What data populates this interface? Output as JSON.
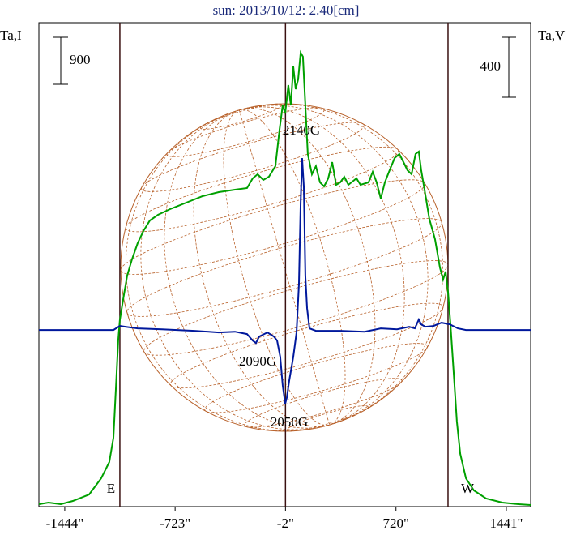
{
  "chart_data": {
    "type": "line",
    "title": "sun: 2013/10/12: 2.40[cm]",
    "ylabel": "Ta,I",
    "y2label": "Ta,V",
    "xlim": [
      -1613,
      1600
    ],
    "ylim": [
      0,
      9265
    ],
    "y2lim": [
      -1178,
      2050
    ],
    "xticks": [
      {
        "value": -1444,
        "label": "-1444\""
      },
      {
        "value": -723,
        "label": "-723\""
      },
      {
        "value": -2,
        "label": "-2\""
      },
      {
        "value": 720,
        "label": "720\""
      },
      {
        "value": 1441,
        "label": "1441\""
      }
    ],
    "vlines": [
      -1084,
      -2,
      1060
    ],
    "scale_bars": [
      900,
      400
    ],
    "annotations": [
      "2140G",
      "2090G",
      "2050G",
      "E",
      "W"
    ],
    "series": [
      {
        "color": "#00a000",
        "x": [
          -1613,
          -1550,
          -1470,
          -1391,
          -1285,
          -1206,
          -1153,
          -1126,
          -1110,
          -1095,
          -1084,
          -1063,
          -1036,
          -1005,
          -968,
          -930,
          -888,
          -835,
          -756,
          -650,
          -544,
          -438,
          -332,
          -253,
          -216,
          -184,
          -147,
          -110,
          -68,
          -41,
          -20,
          -4,
          17,
          33,
          49,
          65,
          81,
          97,
          112,
          128,
          144,
          171,
          197,
          224,
          250,
          277,
          303,
          329,
          356,
          382,
          409,
          462,
          488,
          541,
          568,
          594,
          621,
          647,
          674,
          711,
          742,
          769,
          795,
          822,
          848,
          869,
          885,
          912,
          938,
          975,
          1007,
          1028,
          1044,
          1060,
          1076,
          1097,
          1118,
          1140,
          1177,
          1229,
          1309,
          1415,
          1521,
          1600
        ],
        "values": [
          47,
          78,
          47,
          109,
          233,
          543,
          854,
          1319,
          2250,
          3182,
          3570,
          3958,
          4423,
          4734,
          5044,
          5277,
          5479,
          5587,
          5696,
          5820,
          5944,
          6022,
          6068,
          6099,
          6286,
          6363,
          6255,
          6317,
          6518,
          7217,
          7682,
          7527,
          8070,
          7682,
          8427,
          7993,
          8179,
          8691,
          8614,
          7682,
          6751,
          6363,
          6518,
          6208,
          6130,
          6286,
          6596,
          6161,
          6208,
          6317,
          6161,
          6286,
          6161,
          6208,
          6410,
          6208,
          5898,
          6208,
          6410,
          6674,
          6751,
          6596,
          6441,
          6363,
          6751,
          6798,
          6441,
          5975,
          5510,
          5122,
          4578,
          4346,
          4501,
          4113,
          3492,
          2561,
          1630,
          1009,
          543,
          310,
          155,
          78,
          47,
          31
        ]
      },
      {
        "color": "#00189c",
        "axis": "y2",
        "x": [
          -1613,
          -1126,
          -1084,
          -1047,
          -968,
          -809,
          -597,
          -438,
          -332,
          -253,
          -216,
          -195,
          -173,
          -120,
          -78,
          -57,
          -36,
          -20,
          -4,
          7,
          22,
          49,
          70,
          86,
          97,
          107,
          118,
          128,
          139,
          155,
          197,
          356,
          515,
          621,
          727,
          806,
          843,
          869,
          885,
          912,
          965,
          1018,
          1071,
          1124,
          1177,
          1600
        ],
        "values": [
          0,
          0,
          27,
          22,
          11,
          5,
          -5,
          -16,
          -11,
          -27,
          -70,
          -87,
          -43,
          -16,
          -43,
          -70,
          -179,
          -368,
          -492,
          -449,
          -341,
          -179,
          -16,
          308,
          849,
          1147,
          958,
          362,
          146,
          11,
          -5,
          -5,
          -11,
          11,
          5,
          22,
          11,
          70,
          38,
          22,
          27,
          49,
          38,
          11,
          0,
          0
        ]
      }
    ]
  }
}
